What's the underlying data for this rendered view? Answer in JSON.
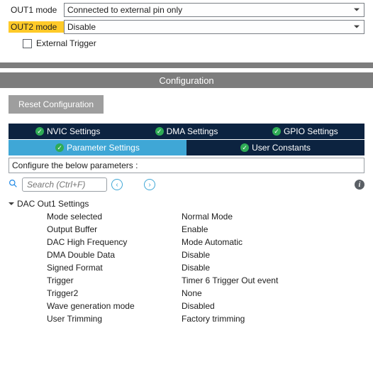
{
  "top": {
    "out1_label": "OUT1 mode",
    "out1_value": "Connected to external pin only",
    "out2_label": "OUT2 mode",
    "out2_value": "Disable",
    "out2_highlight": "#ffca28",
    "external_trigger_label": "External Trigger",
    "external_trigger_checked": false
  },
  "gap_bar_color": "#7d7d7d",
  "config": {
    "title": "Configuration",
    "reset_button": "Reset Configuration",
    "tabs_row1": [
      {
        "label": "NVIC Settings",
        "style": "dark"
      },
      {
        "label": "DMA Settings",
        "style": "dark"
      },
      {
        "label": "GPIO Settings",
        "style": "dark"
      }
    ],
    "tabs_row2": [
      {
        "label": "Parameter Settings",
        "style": "active"
      },
      {
        "label": "User Constants",
        "style": "dark"
      }
    ],
    "tab_dark_bg": "#0c2340",
    "tab_active_bg": "#3fa7d6",
    "tick_bg": "#2eab55",
    "configure_label": "Configure the below parameters :",
    "search_placeholder": "Search (Ctrl+F)"
  },
  "params": {
    "group_title": "DAC Out1 Settings",
    "rows": [
      {
        "key": "Mode selected",
        "value": "Normal Mode"
      },
      {
        "key": "Output Buffer",
        "value": "Enable"
      },
      {
        "key": "DAC High Frequency",
        "value": "Mode Automatic"
      },
      {
        "key": "DMA Double Data",
        "value": "Disable"
      },
      {
        "key": "Signed Format",
        "value": "Disable"
      },
      {
        "key": "Trigger",
        "value": "Timer 6 Trigger Out event"
      },
      {
        "key": "Trigger2",
        "value": "None"
      },
      {
        "key": "Wave generation mode",
        "value": "Disabled"
      },
      {
        "key": "User Trimming",
        "value": "Factory trimming"
      }
    ]
  },
  "colors": {
    "background": "#ffffff",
    "text": "#202020",
    "border": "#9aa0a6",
    "highlight": "#ffca28"
  }
}
